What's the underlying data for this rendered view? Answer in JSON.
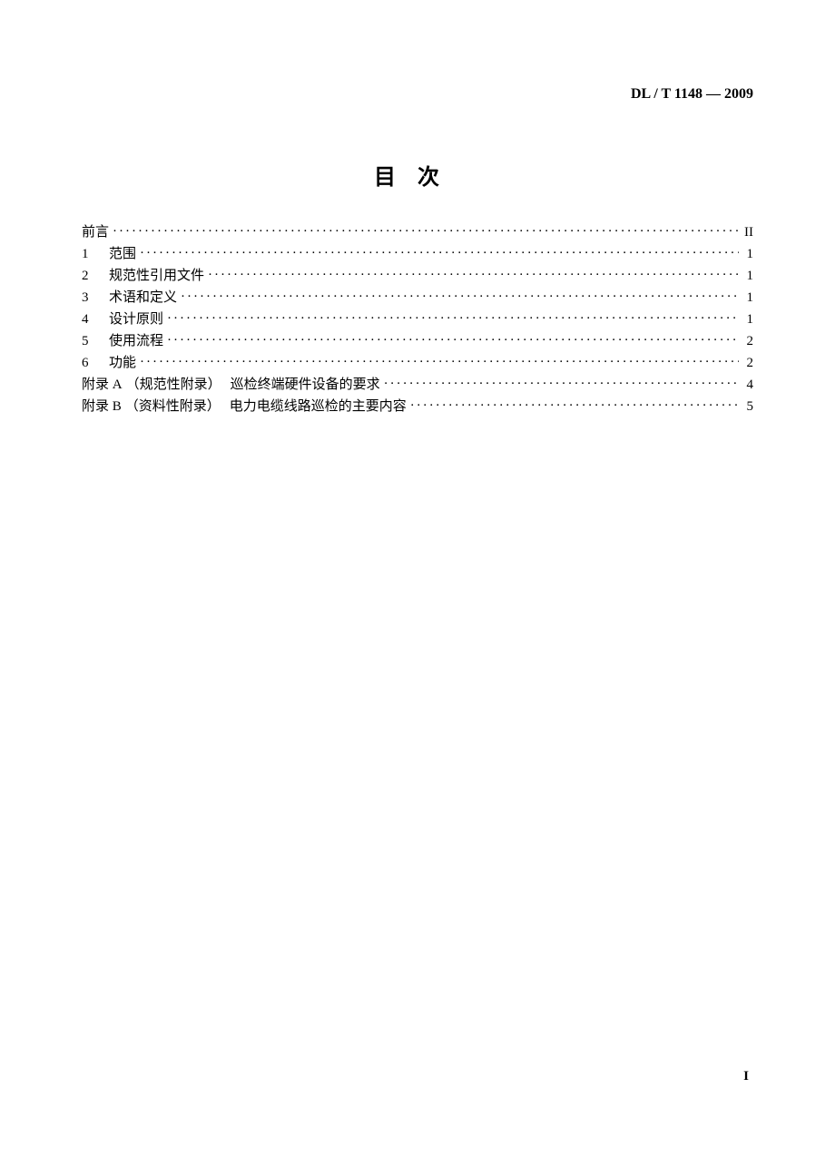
{
  "header": {
    "standard_code": "DL / T 1148 — 2009"
  },
  "title": "目次",
  "toc": {
    "entries": [
      {
        "num": "",
        "label": "前言",
        "page": "II"
      },
      {
        "num": "1",
        "label": "范围",
        "page": "1"
      },
      {
        "num": "2",
        "label": "规范性引用文件",
        "page": "1"
      },
      {
        "num": "3",
        "label": "术语和定义",
        "page": "1"
      },
      {
        "num": "4",
        "label": "设计原则",
        "page": "1"
      },
      {
        "num": "5",
        "label": "使用流程",
        "page": "2"
      },
      {
        "num": "6",
        "label": "功能",
        "page": "2"
      }
    ],
    "appendices": [
      {
        "prefix": "附录 A",
        "type": "（规范性附录）",
        "label": "巡检终端硬件设备的要求",
        "page": "4"
      },
      {
        "prefix": "附录 B",
        "type": "（资料性附录）",
        "label": "电力电缆线路巡检的主要内容",
        "page": "5"
      }
    ]
  },
  "page_number": "I",
  "style": {
    "background_color": "#ffffff",
    "text_color": "#000000",
    "title_fontsize": 24,
    "body_fontsize": 15,
    "header_fontsize": 16,
    "line_height": 23
  }
}
